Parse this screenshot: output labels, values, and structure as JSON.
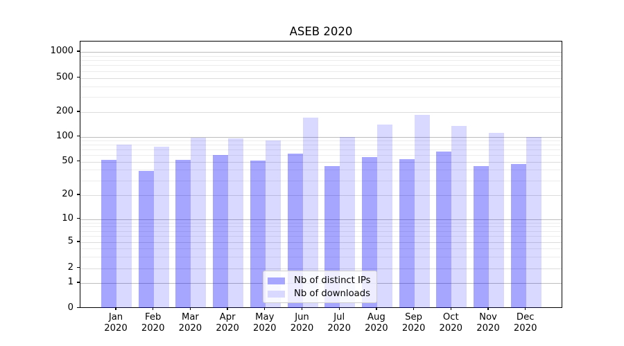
{
  "chart_data": {
    "type": "bar",
    "title": "ASEB 2020",
    "categories": [
      "Jan",
      "Feb",
      "Mar",
      "Apr",
      "May",
      "Jun",
      "Jul",
      "Aug",
      "Sep",
      "Oct",
      "Nov",
      "Dec"
    ],
    "category_year": "2020",
    "series": [
      {
        "name": "Nb of distinct IPs",
        "color": "#0000ff",
        "alpha": 0.35,
        "composited_hex": "#a6a6ff",
        "values": [
          52,
          39,
          52,
          60,
          51,
          63,
          44,
          57,
          53,
          66,
          44,
          47
        ]
      },
      {
        "name": "Nb of downloads",
        "color": "#0000ff",
        "alpha": 0.15,
        "composited_hex": "#d9d9ff",
        "values": [
          80,
          76,
          97,
          96,
          91,
          170,
          100,
          140,
          185,
          135,
          112,
          100
        ]
      }
    ],
    "yscale": "symlog",
    "ylim": [
      0,
      1300
    ],
    "y_ticks": [
      0,
      1,
      2,
      5,
      10,
      20,
      50,
      100,
      200,
      500,
      1000
    ],
    "y_minor_subs": [
      3,
      4,
      6,
      7,
      8,
      9
    ],
    "xlabel": "",
    "ylabel": "",
    "grid": "both",
    "legend_position": "lower center"
  }
}
